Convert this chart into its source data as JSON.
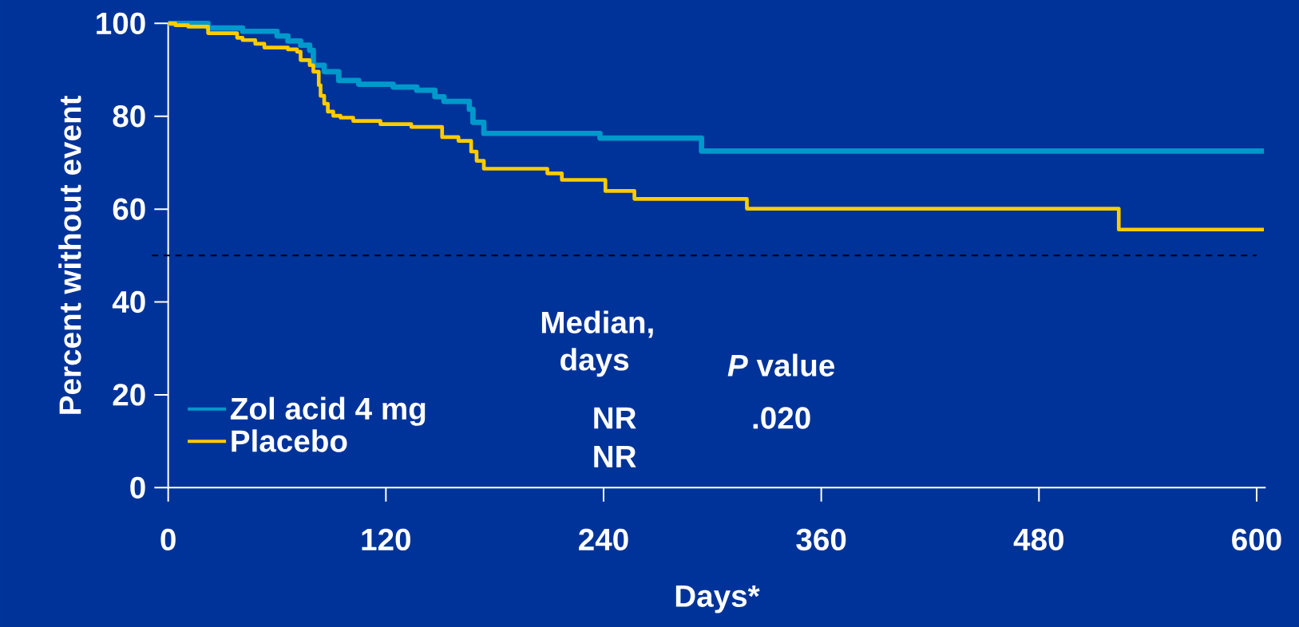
{
  "chart_data": {
    "type": "step",
    "xlabel": "Days*",
    "ylabel": "Percent without event",
    "xlim": [
      0,
      605
    ],
    "ylim": [
      0,
      100
    ],
    "xticks": [
      0,
      120,
      240,
      360,
      480,
      600
    ],
    "yticks": [
      0,
      20,
      40,
      60,
      80,
      100
    ],
    "legend": "bottom left",
    "ref_lines": [
      {
        "axis": "y",
        "value": 50,
        "color": "#000000",
        "line_style": "dashed"
      }
    ],
    "annotations": [
      "Median, days",
      "*P* value",
      "NR",
      "NR",
      ".020"
    ],
    "series": [
      {
        "name": "Zol acid 4 mg",
        "color": "#0099cc",
        "x": [
          0,
          22,
          41,
          60,
          66,
          73,
          78,
          80,
          86,
          94,
          105,
          124,
          137,
          147,
          152,
          166,
          168,
          174,
          238,
          294,
          604
        ],
        "values": [
          100,
          99.0,
          98.3,
          97.3,
          96.2,
          95.3,
          94.2,
          91.0,
          89.6,
          87.7,
          86.9,
          86.3,
          85.6,
          84.2,
          83.2,
          81.5,
          78.7,
          76.3,
          75.3,
          72.5,
          72.5
        ]
      },
      {
        "name": "Placebo",
        "color": "#ffcc00",
        "x": [
          0,
          4,
          11,
          22,
          38,
          41,
          48,
          53,
          66,
          71,
          73,
          78,
          80,
          83,
          84,
          86,
          88,
          91,
          95,
          102,
          117,
          134,
          151,
          160,
          167,
          170,
          174,
          209,
          217,
          241,
          257,
          319,
          524,
          604
        ],
        "values": [
          100,
          99.6,
          99.3,
          97.9,
          96.9,
          96.4,
          95.6,
          94.8,
          94.4,
          93.9,
          92.1,
          91.0,
          89.6,
          86.7,
          84.4,
          82.7,
          81.0,
          80.1,
          79.7,
          79.0,
          78.3,
          77.7,
          75.5,
          74.7,
          72.4,
          70.4,
          68.7,
          67.7,
          66.3,
          63.9,
          62.2,
          60.1,
          55.6,
          55.6
        ]
      }
    ]
  }
}
